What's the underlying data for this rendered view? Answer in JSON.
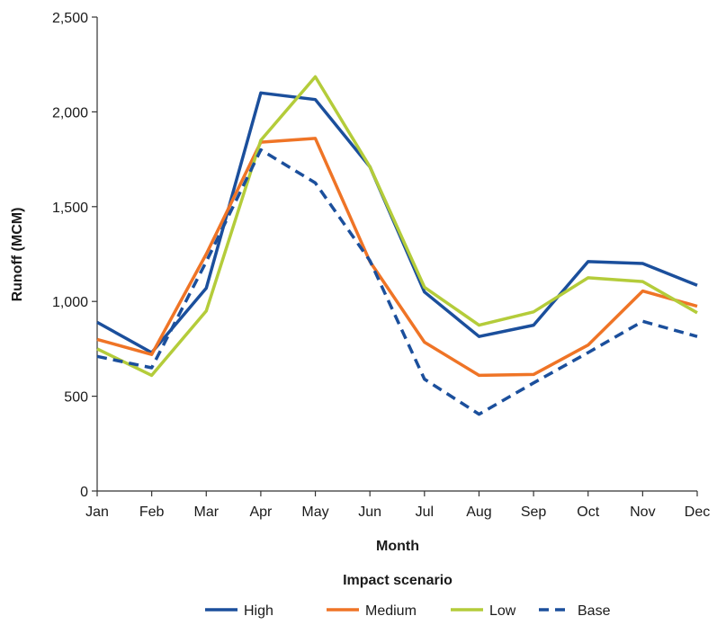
{
  "chart_data": {
    "type": "line",
    "title": "",
    "xlabel": "Month",
    "ylabel": "Runoff (MCM)",
    "legend_title": "Impact scenario",
    "legend_position": "bottom",
    "grid": false,
    "categories": [
      "Jan",
      "Feb",
      "Mar",
      "Apr",
      "May",
      "Jun",
      "Jul",
      "Aug",
      "Sep",
      "Oct",
      "Nov",
      "Dec"
    ],
    "ylim": [
      0,
      2500
    ],
    "yticks": [
      0,
      500,
      1000,
      1500,
      2000,
      2500
    ],
    "ytick_labels": [
      "0",
      "500",
      "1,000",
      "1,500",
      "2,000",
      "2,500"
    ],
    "series": [
      {
        "name": "High",
        "color": "#1b4f9c",
        "dashed": false,
        "values": [
          890,
          730,
          1070,
          2100,
          2065,
          1710,
          1050,
          815,
          875,
          1210,
          1200,
          1085
        ]
      },
      {
        "name": "Medium",
        "color": "#ef7426",
        "dashed": false,
        "values": [
          800,
          720,
          1250,
          1840,
          1860,
          1210,
          785,
          610,
          615,
          770,
          1055,
          975
        ]
      },
      {
        "name": "Low",
        "color": "#b4cc3a",
        "dashed": false,
        "values": [
          750,
          610,
          950,
          1850,
          2185,
          1710,
          1075,
          875,
          945,
          1125,
          1105,
          940
        ]
      },
      {
        "name": "Base",
        "color": "#1b4f9c",
        "dashed": true,
        "values": [
          710,
          650,
          1210,
          1800,
          1625,
          1215,
          590,
          405,
          570,
          730,
          895,
          815
        ]
      }
    ]
  }
}
